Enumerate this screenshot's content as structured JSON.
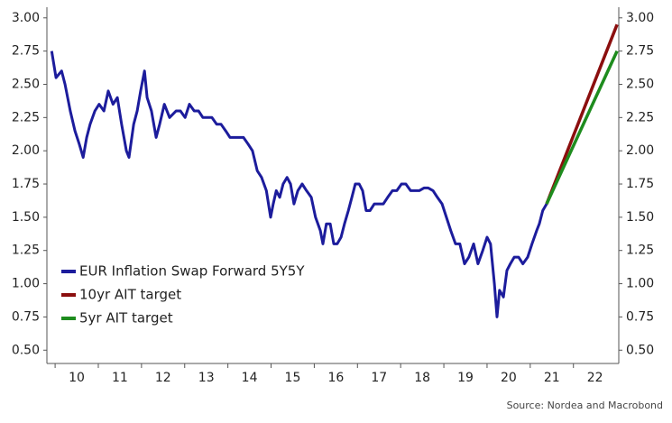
{
  "chart_data": {
    "type": "line",
    "series": [
      {
        "name": "EUR Inflation Swap Forward 5Y5Y",
        "color": "#1c1c9c",
        "x": [
          9.92,
          10.02,
          10.15,
          10.23,
          10.35,
          10.46,
          10.56,
          10.65,
          10.73,
          10.81,
          10.92,
          11.02,
          11.13,
          11.23,
          11.34,
          11.44,
          11.54,
          11.65,
          11.71,
          11.82,
          11.9,
          11.98,
          12.07,
          12.13,
          12.23,
          12.34,
          12.42,
          12.53,
          12.65,
          12.8,
          12.9,
          13.01,
          13.11,
          13.22,
          13.32,
          13.42,
          13.53,
          13.63,
          13.74,
          13.84,
          13.95,
          14.05,
          14.15,
          14.26,
          14.36,
          14.47,
          14.57,
          14.68,
          14.78,
          14.89,
          14.99,
          15.05,
          15.12,
          15.2,
          15.28,
          15.37,
          15.45,
          15.53,
          15.62,
          15.72,
          15.82,
          15.93,
          16.03,
          16.14,
          16.2,
          16.28,
          16.37,
          16.45,
          16.53,
          16.62,
          16.7,
          16.79,
          16.87,
          16.95,
          17.04,
          17.12,
          17.2,
          17.29,
          17.39,
          17.5,
          17.6,
          17.7,
          17.81,
          17.91,
          18.02,
          18.12,
          18.23,
          18.33,
          18.43,
          18.54,
          18.64,
          18.75,
          18.85,
          18.96,
          19.06,
          19.16,
          19.27,
          19.37,
          19.48,
          19.58,
          19.69,
          19.79,
          19.9,
          20.0,
          20.08,
          20.17,
          20.23,
          20.29,
          20.38,
          20.46,
          20.54,
          20.63,
          20.73,
          20.83,
          20.94,
          21.04,
          21.15,
          21.21,
          21.29,
          21.38
        ],
        "values": [
          2.75,
          2.55,
          2.6,
          2.5,
          2.3,
          2.15,
          2.05,
          1.95,
          2.1,
          2.2,
          2.3,
          2.35,
          2.3,
          2.45,
          2.35,
          2.4,
          2.2,
          2.0,
          1.95,
          2.2,
          2.3,
          2.45,
          2.6,
          2.4,
          2.3,
          2.1,
          2.2,
          2.35,
          2.25,
          2.3,
          2.3,
          2.25,
          2.35,
          2.3,
          2.3,
          2.25,
          2.25,
          2.25,
          2.2,
          2.2,
          2.15,
          2.1,
          2.1,
          2.1,
          2.1,
          2.05,
          2.0,
          1.85,
          1.8,
          1.7,
          1.5,
          1.6,
          1.7,
          1.65,
          1.75,
          1.8,
          1.75,
          1.6,
          1.7,
          1.75,
          1.7,
          1.65,
          1.5,
          1.4,
          1.3,
          1.45,
          1.45,
          1.3,
          1.3,
          1.35,
          1.45,
          1.55,
          1.65,
          1.75,
          1.75,
          1.7,
          1.55,
          1.55,
          1.6,
          1.6,
          1.6,
          1.65,
          1.7,
          1.7,
          1.75,
          1.75,
          1.7,
          1.7,
          1.7,
          1.72,
          1.72,
          1.7,
          1.65,
          1.6,
          1.5,
          1.4,
          1.3,
          1.3,
          1.15,
          1.2,
          1.3,
          1.15,
          1.25,
          1.35,
          1.3,
          1.0,
          0.75,
          0.95,
          0.9,
          1.1,
          1.15,
          1.2,
          1.2,
          1.15,
          1.2,
          1.3,
          1.4,
          1.45,
          1.55,
          1.6
        ]
      },
      {
        "name": "10yr AIT target",
        "color": "#8b0e0e",
        "x": [
          21.38,
          23.01
        ],
        "values": [
          1.6,
          2.95
        ]
      },
      {
        "name": "5yr AIT target",
        "color": "#1e8c1e",
        "x": [
          21.38,
          23.01
        ],
        "values": [
          1.6,
          2.75
        ]
      }
    ],
    "xlim": [
      9.81,
      23.05
    ],
    "xticks": [
      {
        "value": 10.5,
        "label": "10"
      },
      {
        "value": 11.5,
        "label": "11"
      },
      {
        "value": 12.5,
        "label": "12"
      },
      {
        "value": 13.5,
        "label": "13"
      },
      {
        "value": 14.5,
        "label": "14"
      },
      {
        "value": 15.5,
        "label": "15"
      },
      {
        "value": 16.5,
        "label": "16"
      },
      {
        "value": 17.5,
        "label": "17"
      },
      {
        "value": 18.5,
        "label": "18"
      },
      {
        "value": 19.5,
        "label": "19"
      },
      {
        "value": 20.5,
        "label": "20"
      },
      {
        "value": 21.5,
        "label": "21"
      },
      {
        "value": 22.5,
        "label": "22"
      }
    ],
    "ylim": [
      0.4,
      3.08
    ],
    "yticks": [
      {
        "value": 0.5,
        "label": "0.50"
      },
      {
        "value": 0.75,
        "label": "0.75"
      },
      {
        "value": 1.0,
        "label": "1.00"
      },
      {
        "value": 1.25,
        "label": "1.25"
      },
      {
        "value": 1.5,
        "label": "1.50"
      },
      {
        "value": 1.75,
        "label": "1.75"
      },
      {
        "value": 2.0,
        "label": "2.00"
      },
      {
        "value": 2.25,
        "label": "2.25"
      },
      {
        "value": 2.5,
        "label": "2.50"
      },
      {
        "value": 2.75,
        "label": "2.75"
      },
      {
        "value": 3.0,
        "label": "3.00"
      }
    ],
    "y2lim": [
      0.4,
      3.08
    ],
    "y2ticks": [
      {
        "value": 0.5,
        "label": "0.50"
      },
      {
        "value": 0.75,
        "label": "0.75"
      },
      {
        "value": 1.0,
        "label": "1.00"
      },
      {
        "value": 1.25,
        "label": "1.25"
      },
      {
        "value": 1.5,
        "label": "1.50"
      },
      {
        "value": 1.75,
        "label": "1.75"
      },
      {
        "value": 2.0,
        "label": "2.00"
      },
      {
        "value": 2.25,
        "label": "2.25"
      },
      {
        "value": 2.5,
        "label": "2.50"
      },
      {
        "value": 2.75,
        "label": "2.75"
      },
      {
        "value": 3.0,
        "label": "3.00"
      }
    ],
    "legend": "lower-left",
    "source": "Source: Nordea and Macrobond"
  }
}
